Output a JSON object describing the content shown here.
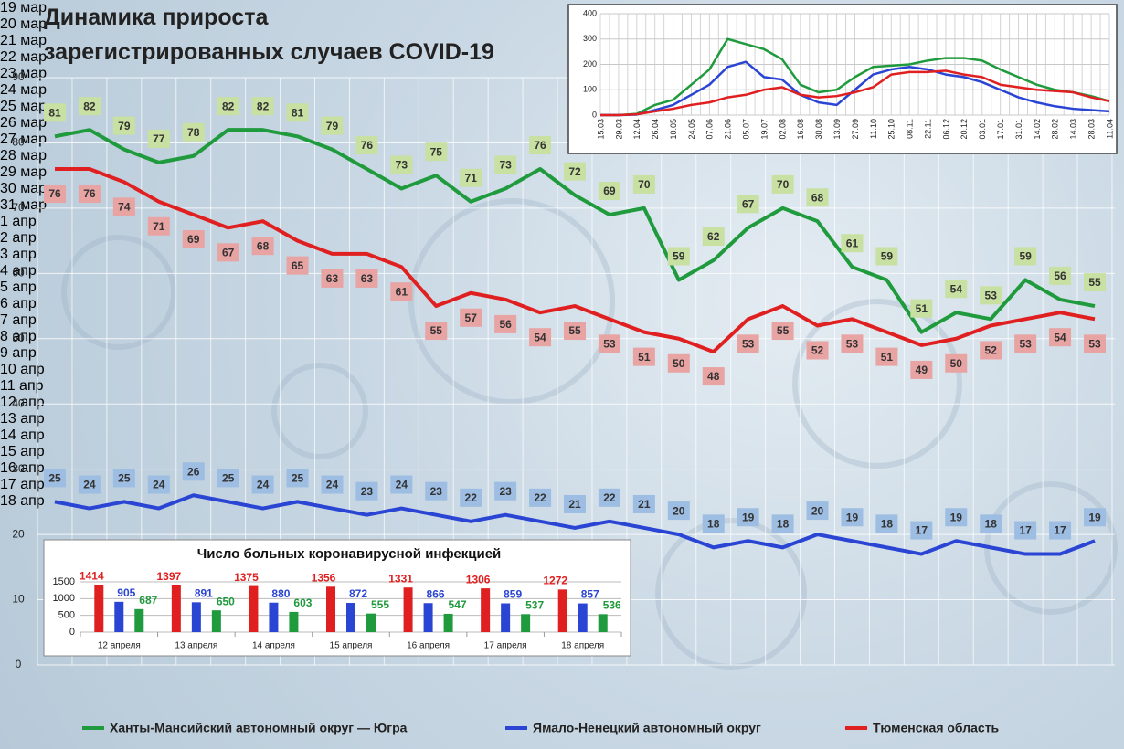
{
  "chart_data": [
    {
      "type": "line",
      "title": "Динамика прироста\nзарегистрированных случаев COVID-19",
      "categories": [
        "19\nмар",
        "20\nмар",
        "21\nмар",
        "22\nмар",
        "23\nмар",
        "24\nмар",
        "25\nмар",
        "26\nмар",
        "27\nмар",
        "28\nмар",
        "29\nмар",
        "30\nмар",
        "31\nмар",
        "1 апр",
        "2 апр",
        "3 апр",
        "4 апр",
        "5 апр",
        "6 апр",
        "7 апр",
        "8 апр",
        "9 апр",
        "10\nапр",
        "11\nапр",
        "12\nапр",
        "13\nапр",
        "14\nапр",
        "15\nапр",
        "16\nапр",
        "17\nапр",
        "18\nапр"
      ],
      "series": [
        {
          "name": "Ханты-Мансийский автономный округ — Югра",
          "color": "#1f9a3c",
          "values": [
            81,
            82,
            79,
            77,
            78,
            82,
            82,
            81,
            79,
            76,
            73,
            75,
            71,
            73,
            76,
            72,
            69,
            70,
            59,
            62,
            67,
            70,
            68,
            61,
            59,
            51,
            54,
            53,
            59,
            56,
            55
          ]
        },
        {
          "name": "Ямало-Ненецкий автономный округ",
          "color": "#2a44d4",
          "values": [
            25,
            24,
            25,
            24,
            26,
            25,
            24,
            25,
            24,
            23,
            24,
            23,
            22,
            23,
            22,
            21,
            22,
            21,
            20,
            18,
            19,
            18,
            20,
            19,
            18,
            17,
            19,
            18,
            17,
            17,
            19
          ]
        },
        {
          "name": "Тюменская область",
          "color": "#e02020",
          "values": [
            76,
            76,
            74,
            71,
            69,
            67,
            68,
            65,
            63,
            63,
            61,
            55,
            57,
            56,
            54,
            55,
            53,
            51,
            50,
            48,
            53,
            55,
            52,
            53,
            51,
            49,
            50,
            52,
            53,
            54,
            53
          ]
        }
      ],
      "ylim": [
        0,
        90
      ],
      "yticks": [
        0,
        10,
        20,
        30,
        40,
        50,
        60,
        70,
        80,
        90
      ],
      "grid": true,
      "legend": "bottom"
    },
    {
      "type": "line",
      "categories": [
        "15.03",
        "29.03",
        "12.04",
        "26.04",
        "10.05",
        "24.05",
        "07.06",
        "21.06",
        "05.07",
        "19.07",
        "02.08",
        "16.08",
        "30.08",
        "13.09",
        "27.09",
        "11.10",
        "25.10",
        "08.11",
        "22.11",
        "06.12",
        "20.12",
        "03.01",
        "17.01",
        "31.01",
        "14.02",
        "28.02",
        "14.03",
        "28.03",
        "11.04"
      ],
      "series": [
        {
          "color": "#1f9a3c",
          "values": [
            0,
            0,
            5,
            40,
            60,
            120,
            180,
            300,
            280,
            260,
            220,
            120,
            90,
            100,
            150,
            190,
            195,
            200,
            215,
            225,
            225,
            215,
            180,
            150,
            120,
            100,
            90,
            75,
            55
          ]
        },
        {
          "color": "#2a44d4",
          "values": [
            0,
            0,
            2,
            20,
            40,
            80,
            120,
            190,
            210,
            150,
            140,
            80,
            50,
            40,
            100,
            160,
            180,
            190,
            180,
            160,
            150,
            130,
            100,
            70,
            50,
            35,
            25,
            20,
            15
          ]
        },
        {
          "color": "#e02020",
          "values": [
            0,
            0,
            3,
            15,
            25,
            40,
            50,
            70,
            80,
            100,
            110,
            80,
            70,
            75,
            90,
            110,
            160,
            170,
            170,
            175,
            160,
            150,
            120,
            110,
            100,
            95,
            90,
            70,
            55
          ]
        }
      ],
      "ylim": [
        0,
        400
      ],
      "yticks": [
        0,
        100,
        200,
        300,
        400
      ],
      "grid": true
    },
    {
      "type": "bar",
      "title": "Число больных  коронавирусной  инфекцией",
      "categories": [
        "12 апреля",
        "13 апреля",
        "14 апреля",
        "15 апреля",
        "16 апреля",
        "17 апреля",
        "18 апреля"
      ],
      "series": [
        {
          "color": "#e02020",
          "values": [
            1414,
            1397,
            1375,
            1356,
            1331,
            1306,
            1272
          ]
        },
        {
          "color": "#2a44d4",
          "values": [
            905,
            891,
            880,
            872,
            866,
            859,
            857
          ]
        },
        {
          "color": "#1f9a3c",
          "values": [
            687,
            650,
            603,
            555,
            547,
            537,
            536
          ]
        }
      ],
      "ylim": [
        0,
        1500
      ],
      "yticks": [
        0,
        500,
        1000,
        1500
      ],
      "grid": true
    }
  ]
}
